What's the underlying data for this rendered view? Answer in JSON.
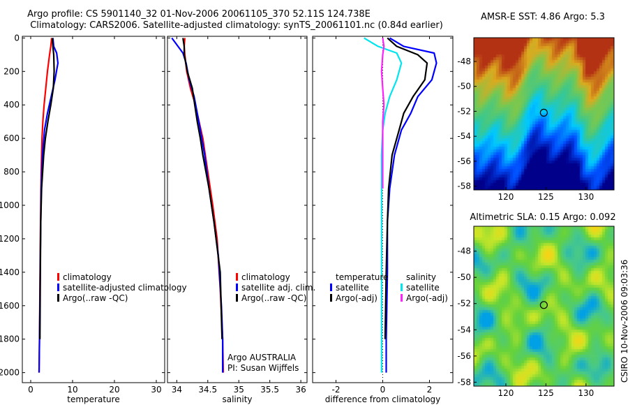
{
  "header": {
    "line1": "Argo profile: CS 5901140_32 01-Nov-2006 20061105_370 52.11S 124.738E",
    "line2": "Climatology: CARS2006. Satellite-adjusted climatology: synTS_20061101.nc (0.84d earlier)"
  },
  "vertical_stamp": "CSIRO 10-Nov-2006 09:03:36",
  "colors": {
    "climatology": "#ff0000",
    "satellite": "#0000ff",
    "argo": "#000000",
    "satellite_difference_salinity": "#00e5ee",
    "argo_difference_salinity": "#ff22ff"
  },
  "chart_data": [
    {
      "id": "temperature",
      "type": "line",
      "xlabel": "temperature",
      "xlim": [
        -2,
        32
      ],
      "xticks": [
        0,
        10,
        20,
        30
      ],
      "ylim": [
        2060,
        -10
      ],
      "yticks": [
        0,
        200,
        400,
        600,
        800,
        1000,
        1200,
        1400,
        1600,
        1800,
        2000
      ],
      "legend": {
        "position": "bottom-right",
        "entries": [
          "climatology",
          "satellite-adjusted climatology",
          "Argo(..raw -QC)"
        ]
      },
      "series": [
        {
          "name": "climatology",
          "color": "#ff0000",
          "x": [
            5.0,
            4.8,
            4.5,
            4.0,
            3.6,
            3.2,
            2.9,
            2.7,
            2.5,
            2.4,
            2.3,
            2.2,
            2.1,
            2.0
          ],
          "y": [
            0,
            50,
            100,
            200,
            300,
            400,
            500,
            600,
            800,
            1000,
            1200,
            1500,
            1800,
            2000
          ]
        },
        {
          "name": "satellite-adjusted climatology",
          "color": "#0000ff",
          "x": [
            5.3,
            5.5,
            6.2,
            6.5,
            5.8,
            4.9,
            4.0,
            3.3,
            2.8,
            2.5,
            2.4,
            2.3,
            2.2,
            2.1,
            2.0
          ],
          "y": [
            0,
            50,
            90,
            150,
            250,
            350,
            450,
            550,
            700,
            900,
            1100,
            1300,
            1600,
            1800,
            2000
          ]
        },
        {
          "name": "Argo(..raw -QC)",
          "color": "#000000",
          "x": [
            5.2,
            5.3,
            5.5,
            5.6,
            5.4,
            4.8,
            4.1,
            3.5,
            3.1,
            2.6,
            2.4,
            2.3,
            2.2
          ],
          "y": [
            0,
            50,
            100,
            200,
            300,
            400,
            500,
            600,
            700,
            900,
            1100,
            1400,
            1800
          ]
        }
      ]
    },
    {
      "id": "salinity",
      "type": "line",
      "xlabel": "salinity",
      "xlim": [
        33.85,
        36.1
      ],
      "xticks": [
        34,
        34.5,
        35,
        35.5,
        36
      ],
      "ylim": [
        2060,
        -10
      ],
      "legend": {
        "position": "bottom-right",
        "entries": [
          "climatology",
          "satellite adj. clim.",
          "Argo(..raw -QC)"
        ]
      },
      "annotations": [
        "Argo AUSTRALIA",
        "PI: Susan Wijffels"
      ],
      "series": [
        {
          "name": "climatology",
          "color": "#ff0000",
          "x": [
            34.13,
            34.12,
            34.13,
            34.16,
            34.22,
            34.3,
            34.36,
            34.42,
            34.5,
            34.58,
            34.65,
            34.7,
            34.74,
            34.75
          ],
          "y": [
            0,
            50,
            100,
            200,
            300,
            400,
            500,
            600,
            800,
            1000,
            1200,
            1500,
            1800,
            2000
          ]
        },
        {
          "name": "satellite adj. clim.",
          "color": "#0000ff",
          "x": [
            33.92,
            34.02,
            34.1,
            34.15,
            34.2,
            34.28,
            34.33,
            34.38,
            34.45,
            34.52,
            34.6,
            34.67,
            34.72,
            34.74,
            34.74
          ],
          "y": [
            0,
            50,
            90,
            150,
            250,
            350,
            450,
            550,
            700,
            900,
            1100,
            1300,
            1600,
            1800,
            2000
          ]
        },
        {
          "name": "Argo(..raw -QC)",
          "color": "#000000",
          "x": [
            34.1,
            34.12,
            34.12,
            34.17,
            34.25,
            34.29,
            34.33,
            34.38,
            34.42,
            34.52,
            34.6,
            34.7,
            34.73
          ],
          "y": [
            0,
            50,
            100,
            200,
            300,
            400,
            500,
            600,
            700,
            900,
            1100,
            1400,
            1800
          ]
        }
      ]
    },
    {
      "id": "difference",
      "type": "line",
      "xlabel": "difference from climatology",
      "xlim": [
        -3,
        3
      ],
      "xticks": [
        -2,
        0,
        2
      ],
      "ylim": [
        2060,
        -10
      ],
      "legend": {
        "position": "bottom-right",
        "temperature_header": "temperature",
        "salinity_header": "salinity",
        "temperature_entries": [
          "satellite",
          "Argo(-adj)"
        ],
        "salinity_entries": [
          "satellite",
          "Argo(-adj)"
        ]
      },
      "series": [
        {
          "name": "temperature satellite",
          "color": "#0000ff",
          "x": [
            0.3,
            0.9,
            2.2,
            2.3,
            2.1,
            1.5,
            1.2,
            0.8,
            0.5,
            0.3,
            0.2,
            0.2,
            0.15,
            0.15
          ],
          "y": [
            0,
            50,
            90,
            150,
            250,
            350,
            450,
            550,
            700,
            900,
            1100,
            1400,
            1800,
            2000
          ]
        },
        {
          "name": "temperature Argo(-adj)",
          "color": "#000000",
          "x": [
            0.2,
            0.6,
            1.5,
            1.9,
            1.8,
            1.3,
            0.9,
            0.7,
            0.4,
            0.25,
            0.2,
            0.15,
            0.1
          ],
          "y": [
            0,
            50,
            100,
            150,
            250,
            350,
            450,
            550,
            700,
            900,
            1100,
            1400,
            1800
          ]
        },
        {
          "name": "salinity satellite",
          "color": "#00e5ee",
          "x": [
            -0.8,
            -0.2,
            0.6,
            0.8,
            0.6,
            0.3,
            0.1,
            0.0,
            -0.05,
            -0.05,
            -0.05,
            -0.05,
            -0.05,
            -0.05
          ],
          "y": [
            0,
            50,
            90,
            150,
            250,
            350,
            450,
            550,
            700,
            900,
            1100,
            1400,
            1800,
            2000
          ]
        },
        {
          "name": "salinity Argo(-adj)",
          "color": "#ff22ff",
          "x": [
            0.0,
            0.05,
            0.0,
            -0.05,
            0.0,
            0.05,
            0.0,
            0.0,
            0.0,
            0.0
          ],
          "y": [
            0,
            50,
            100,
            200,
            300,
            400,
            500,
            600,
            700,
            900
          ]
        }
      ]
    },
    {
      "id": "sst_map",
      "type": "heatmap",
      "title": "AMSR-E SST: 4.86 Argo: 5.3",
      "xlim": [
        116,
        133.5
      ],
      "ylim": [
        -58.3,
        -46.1
      ],
      "xticks": [
        120,
        125,
        130
      ],
      "yticks": [
        -48,
        -50,
        -52,
        -54,
        -56,
        -58
      ],
      "colormap": [
        "#00008b",
        "#0050ff",
        "#00c8ff",
        "#3cc88c",
        "#78c850",
        "#dcaa1e",
        "#b43214"
      ],
      "float_position": {
        "lon": 124.738,
        "lat": -52.11
      }
    },
    {
      "id": "sla_map",
      "type": "heatmap",
      "title": "Altimetric SLA: 0.15 Argo: 0.092",
      "xlim": [
        116,
        133.5
      ],
      "ylim": [
        -58.3,
        -46.1
      ],
      "xticks": [
        120,
        125,
        130
      ],
      "yticks": [
        -48,
        -50,
        -52,
        -54,
        -56,
        -58
      ],
      "colormap": [
        "#00a0e6",
        "#46c88c",
        "#64d23c",
        "#c8e628",
        "#fad214",
        "#f09614"
      ],
      "float_position": {
        "lon": 124.738,
        "lat": -52.11
      }
    }
  ]
}
